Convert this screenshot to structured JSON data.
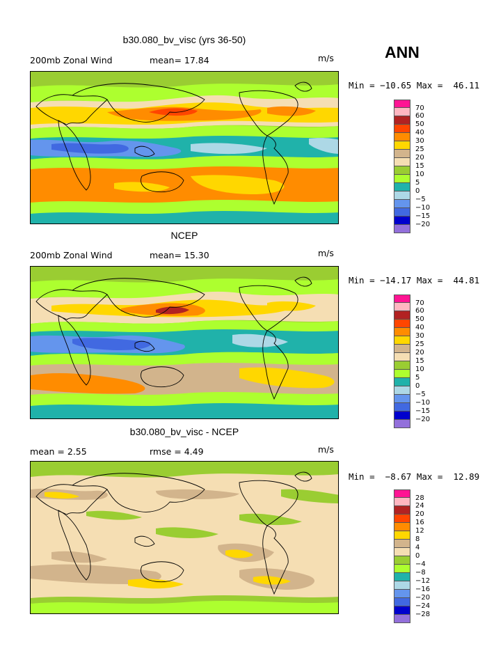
{
  "season": "ANN",
  "panels": [
    {
      "title": "b30.080_bv_visc (yrs 36-50)",
      "field": "200mb Zonal Wind",
      "stat1": "mean=  17.84",
      "stat2": "",
      "units": "m/s",
      "minmax": "Min = −10.65 Max =  46.11",
      "map": "model-zonal-wind-map",
      "legend": {
        "colors": [
          "#ff1493",
          "#ffb6c1",
          "#b22222",
          "#ff4500",
          "#ff8c00",
          "#ffd700",
          "#d2b48c",
          "#f5deb3",
          "#9acd32",
          "#adff2f",
          "#20b2aa",
          "#add8e6",
          "#6495ed",
          "#4169e1",
          "#0000cd",
          "#9370db"
        ],
        "labels": [
          "70",
          "60",
          "50",
          "40",
          "30",
          "25",
          "20",
          "15",
          "10",
          "5",
          "0",
          "−5",
          "−10",
          "−15",
          "−20"
        ]
      }
    },
    {
      "title": "NCEP",
      "field": "200mb Zonal Wind",
      "stat1": "mean=  15.30",
      "stat2": "",
      "units": "m/s",
      "minmax": "Min = −14.17 Max =  44.81",
      "map": "ncep-zonal-wind-map",
      "legend": {
        "colors": [
          "#ff1493",
          "#ffb6c1",
          "#b22222",
          "#ff4500",
          "#ff8c00",
          "#ffd700",
          "#d2b48c",
          "#f5deb3",
          "#9acd32",
          "#adff2f",
          "#20b2aa",
          "#add8e6",
          "#6495ed",
          "#4169e1",
          "#0000cd",
          "#9370db"
        ],
        "labels": [
          "70",
          "60",
          "50",
          "40",
          "30",
          "25",
          "20",
          "15",
          "10",
          "5",
          "0",
          "−5",
          "−10",
          "−15",
          "−20"
        ]
      }
    },
    {
      "title": "b30.080_bv_visc - NCEP",
      "field": "mean =   2.55",
      "stat1": "rmse =   4.49",
      "stat2": "",
      "units": "m/s",
      "minmax": "Min =  −8.67 Max =  12.89",
      "map": "difference-zonal-wind-map",
      "legend": {
        "colors": [
          "#ff1493",
          "#ffb6c1",
          "#b22222",
          "#ff4500",
          "#ff8c00",
          "#ffd700",
          "#d2b48c",
          "#f5deb3",
          "#9acd32",
          "#adff2f",
          "#20b2aa",
          "#add8e6",
          "#6495ed",
          "#4169e1",
          "#0000cd",
          "#9370db"
        ],
        "labels": [
          "28",
          "24",
          "20",
          "16",
          "12",
          "8",
          "4",
          "0",
          "−4",
          "−8",
          "−12",
          "−16",
          "−20",
          "−24",
          "−28"
        ]
      }
    }
  ]
}
